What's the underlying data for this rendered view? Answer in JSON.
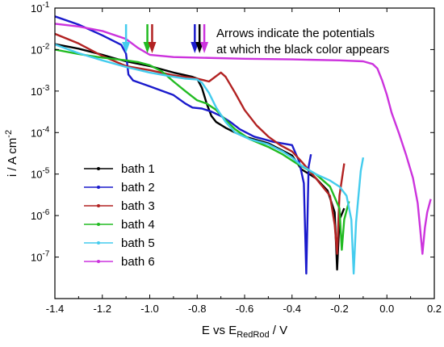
{
  "chart_data": {
    "type": "line",
    "title": "",
    "xlabel": {
      "main": "E vs E",
      "sub": "RedRod",
      "suffix": " / V"
    },
    "ylabel": {
      "main": "i / A cm",
      "sup": "-2"
    },
    "xlim": [
      -1.4,
      0.2
    ],
    "ylim_exp": [
      -8,
      -1
    ],
    "yscale": "log",
    "x_ticks": [
      "-1.4",
      "-1.2",
      "-1.0",
      "-0.8",
      "-0.6",
      "-0.4",
      "-0.2",
      "0.0",
      "0.2"
    ],
    "y_tick_bases": [
      "10",
      "10",
      "10",
      "10",
      "10",
      "10",
      "10"
    ],
    "y_tick_exps": [
      "-7",
      "-6",
      "-5",
      "-4",
      "-3",
      "-2",
      "-1"
    ],
    "annotation": [
      "Arrows indicate the potentials",
      "at which the black color appears"
    ],
    "arrows": [
      {
        "series": "bath 5",
        "x": -1.1
      },
      {
        "series": "bath 4",
        "x": -1.01
      },
      {
        "series": "bath 3",
        "x": -0.99
      },
      {
        "series": "bath 2",
        "x": -0.81
      },
      {
        "series": "bath 1",
        "x": -0.79
      },
      {
        "series": "bath 6",
        "x": -0.77
      }
    ],
    "series": [
      {
        "name": "bath 1",
        "color": "#000000",
        "points": [
          [
            -1.4,
            0.0135
          ],
          [
            -1.3,
            0.0105
          ],
          [
            -1.2,
            0.0075
          ],
          [
            -1.15,
            0.0062
          ],
          [
            -1.1,
            0.0052
          ],
          [
            -1.0,
            0.004
          ],
          [
            -0.9,
            0.0028
          ],
          [
            -0.82,
            0.0022
          ],
          [
            -0.8,
            0.002
          ],
          [
            -0.78,
            0.0012
          ],
          [
            -0.76,
            0.0005
          ],
          [
            -0.74,
            0.00025
          ],
          [
            -0.72,
            0.00018
          ],
          [
            -0.68,
            0.00013
          ],
          [
            -0.64,
            0.0001
          ],
          [
            -0.6,
            8e-05
          ],
          [
            -0.5,
            5.5e-05
          ],
          [
            -0.4,
            2.8e-05
          ],
          [
            -0.36,
            1.3e-05
          ],
          [
            -0.3,
            8e-06
          ],
          [
            -0.25,
            4e-06
          ],
          [
            -0.22,
            1.2e-06
          ],
          [
            -0.21,
            5e-08
          ],
          [
            -0.2,
            8e-07
          ],
          [
            -0.18,
            1.5e-06
          ]
        ]
      },
      {
        "name": "bath 2",
        "color": "#1a1acc",
        "points": [
          [
            -1.4,
            0.063
          ],
          [
            -1.3,
            0.04
          ],
          [
            -1.2,
            0.022
          ],
          [
            -1.12,
            0.013
          ],
          [
            -1.1,
            0.008
          ],
          [
            -1.09,
            0.0025
          ],
          [
            -1.07,
            0.0018
          ],
          [
            -1.0,
            0.0013
          ],
          [
            -0.9,
            0.0008
          ],
          [
            -0.85,
            0.0005
          ],
          [
            -0.82,
            0.0004
          ],
          [
            -0.78,
            0.00038
          ],
          [
            -0.74,
            0.00032
          ],
          [
            -0.7,
            0.00025
          ],
          [
            -0.66,
            0.00018
          ],
          [
            -0.62,
            0.00012
          ],
          [
            -0.56,
            8e-05
          ],
          [
            -0.48,
            6e-05
          ],
          [
            -0.4,
            5e-05
          ],
          [
            -0.37,
            2e-05
          ],
          [
            -0.35,
            6e-06
          ],
          [
            -0.34,
            4e-08
          ],
          [
            -0.33,
            1.5e-05
          ],
          [
            -0.32,
            3e-05
          ]
        ]
      },
      {
        "name": "bath 3",
        "color": "#b22222",
        "points": [
          [
            -1.4,
            0.024
          ],
          [
            -1.3,
            0.014
          ],
          [
            -1.2,
            0.007
          ],
          [
            -1.1,
            0.004
          ],
          [
            -1.0,
            0.0032
          ],
          [
            -0.9,
            0.0024
          ],
          [
            -0.8,
            0.002
          ],
          [
            -0.75,
            0.0017
          ],
          [
            -0.7,
            0.0028
          ],
          [
            -0.68,
            0.0022
          ],
          [
            -0.64,
            0.0009
          ],
          [
            -0.6,
            0.00035
          ],
          [
            -0.55,
            0.00015
          ],
          [
            -0.5,
            8e-05
          ],
          [
            -0.45,
            5e-05
          ],
          [
            -0.4,
            3.5e-05
          ],
          [
            -0.36,
            2e-05
          ],
          [
            -0.3,
            8e-06
          ],
          [
            -0.24,
            3e-06
          ],
          [
            -0.22,
            6e-07
          ],
          [
            -0.21,
            1.2e-07
          ],
          [
            -0.2,
            3e-06
          ],
          [
            -0.18,
            1.8e-05
          ]
        ]
      },
      {
        "name": "bath 4",
        "color": "#22bb22",
        "points": [
          [
            -1.4,
            0.01
          ],
          [
            -1.3,
            0.0078
          ],
          [
            -1.2,
            0.0064
          ],
          [
            -1.1,
            0.0055
          ],
          [
            -1.05,
            0.005
          ],
          [
            -1.0,
            0.0042
          ],
          [
            -0.95,
            0.003
          ],
          [
            -0.9,
            0.0017
          ],
          [
            -0.85,
            0.001
          ],
          [
            -0.8,
            0.0006
          ],
          [
            -0.76,
            0.0005
          ],
          [
            -0.72,
            0.00035
          ],
          [
            -0.68,
            0.0002
          ],
          [
            -0.64,
            0.00012
          ],
          [
            -0.58,
            7e-05
          ],
          [
            -0.5,
            4.5e-05
          ],
          [
            -0.44,
            3e-05
          ],
          [
            -0.38,
            1.8e-05
          ],
          [
            -0.3,
            1e-05
          ],
          [
            -0.24,
            5e-06
          ],
          [
            -0.2,
            1.5e-06
          ],
          [
            -0.19,
            1.5e-07
          ],
          [
            -0.18,
            8e-07
          ],
          [
            -0.16,
            2.2e-06
          ]
        ]
      },
      {
        "name": "bath 5",
        "color": "#44ccee",
        "points": [
          [
            -1.4,
            0.0133
          ],
          [
            -1.3,
            0.0082
          ],
          [
            -1.2,
            0.0055
          ],
          [
            -1.1,
            0.0038
          ],
          [
            -1.0,
            0.0028
          ],
          [
            -0.9,
            0.0022
          ],
          [
            -0.85,
            0.002
          ],
          [
            -0.8,
            0.0019
          ],
          [
            -0.78,
            0.0016
          ],
          [
            -0.75,
            0.0009
          ],
          [
            -0.72,
            0.0004
          ],
          [
            -0.68,
            0.00018
          ],
          [
            -0.64,
            0.0001
          ],
          [
            -0.58,
            7e-05
          ],
          [
            -0.5,
            5.2e-05
          ],
          [
            -0.44,
            3.5e-05
          ],
          [
            -0.4,
            2.5e-05
          ],
          [
            -0.36,
            1.6e-05
          ],
          [
            -0.3,
            1e-05
          ],
          [
            -0.24,
            7e-06
          ],
          [
            -0.2,
            5e-06
          ],
          [
            -0.17,
            3e-06
          ],
          [
            -0.15,
            8e-07
          ],
          [
            -0.14,
            4e-08
          ],
          [
            -0.13,
            7e-07
          ],
          [
            -0.11,
            1.2e-05
          ],
          [
            -0.1,
            2.5e-05
          ]
        ]
      },
      {
        "name": "bath 6",
        "color": "#cc33dd",
        "points": [
          [
            -1.4,
            0.042
          ],
          [
            -1.3,
            0.036
          ],
          [
            -1.2,
            0.028
          ],
          [
            -1.1,
            0.018
          ],
          [
            -1.05,
            0.011
          ],
          [
            -1.0,
            0.0075
          ],
          [
            -0.9,
            0.0066
          ],
          [
            -0.8,
            0.0064
          ],
          [
            -0.6,
            0.006
          ],
          [
            -0.4,
            0.0058
          ],
          [
            -0.2,
            0.0055
          ],
          [
            -0.1,
            0.0052
          ],
          [
            -0.06,
            0.0045
          ],
          [
            -0.04,
            0.0035
          ],
          [
            -0.02,
            0.0018
          ],
          [
            0.0,
            0.0008
          ],
          [
            0.02,
            0.0003
          ],
          [
            0.05,
            0.0001
          ],
          [
            0.08,
            3e-05
          ],
          [
            0.11,
            8e-06
          ],
          [
            0.13,
            2e-06
          ],
          [
            0.14,
            5e-07
          ],
          [
            0.15,
            1.2e-07
          ],
          [
            0.16,
            5e-07
          ],
          [
            0.17,
            1.2e-06
          ],
          [
            0.185,
            2.5e-06
          ]
        ]
      }
    ]
  }
}
